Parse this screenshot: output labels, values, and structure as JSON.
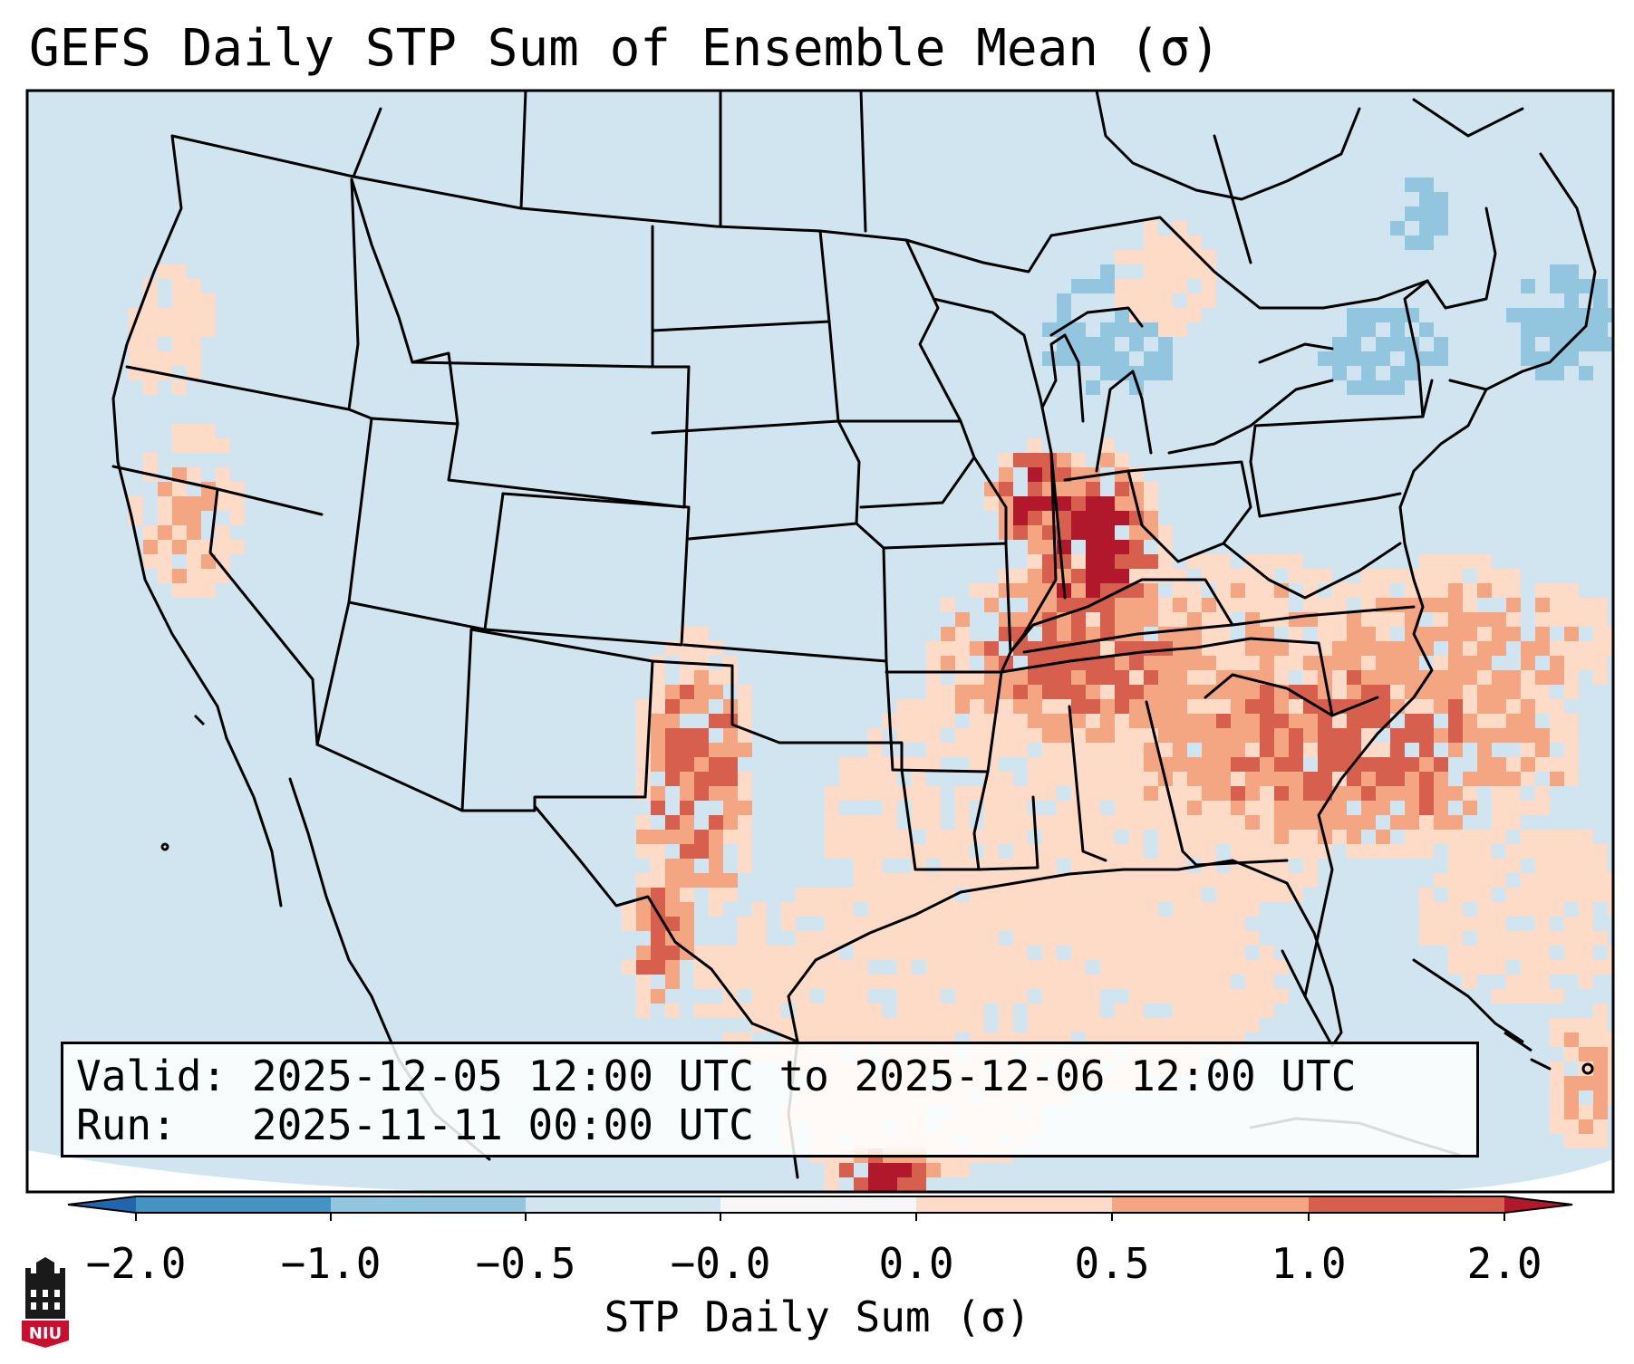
{
  "title": "GEFS Daily STP Sum of Ensemble Mean (σ)",
  "info": {
    "valid_label": "Valid:",
    "valid_value": "2025-12-05 12:00 UTC to 2025-12-06 12:00 UTC",
    "run_label": "Run:",
    "run_value": "2025-11-11 00:00 UTC"
  },
  "colorbar": {
    "label": "STP Daily Sum (σ)",
    "ticks": [
      "−2.0",
      "−1.0",
      "−0.5",
      "−0.0",
      "0.0",
      "0.5",
      "1.0",
      "2.0"
    ],
    "bins": [
      {
        "range": "below -2.0",
        "color": "#2166ac"
      },
      {
        "range": "-2.0 to -1.0",
        "color": "#4393c3"
      },
      {
        "range": "-1.0 to -0.5",
        "color": "#92c5de"
      },
      {
        "range": "-0.5 to -0.0",
        "color": "#d1e5f0"
      },
      {
        "range": "-0.0 to 0.0",
        "color": "#f7f7f7"
      },
      {
        "range": "0.0 to 0.5",
        "color": "#fddbc7"
      },
      {
        "range": "0.5 to 1.0",
        "color": "#f4a582"
      },
      {
        "range": "1.0 to 2.0",
        "color": "#d6604d"
      },
      {
        "range": "above 2.0",
        "color": "#b2182b"
      }
    ]
  },
  "map": {
    "background_color": "#d1e5f0",
    "border_color": "#000000",
    "projection": "Lambert Conformal",
    "region": "Contiguous United States"
  },
  "logo": {
    "text": "NIU",
    "color": "#c8102e"
  }
}
